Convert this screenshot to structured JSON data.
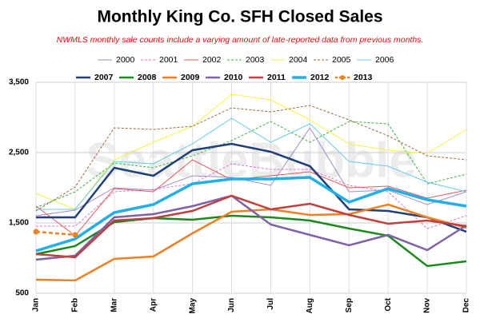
{
  "chart_data": {
    "type": "line",
    "title": "Monthly King Co. SFH Closed Sales",
    "subtitle": "NWMLS monthly sale counts include a varying amount of late-reported  data from previous months.",
    "watermark": "SeattleBubble",
    "categories": [
      "Jan",
      "Feb",
      "Mar",
      "Apr",
      "May",
      "Jun",
      "Jul",
      "Aug",
      "Sep",
      "Oct",
      "Nov",
      "Dec"
    ],
    "ylim": [
      500,
      3500
    ],
    "yticks": [
      {
        "value": 500,
        "label": "500"
      },
      {
        "value": 1500,
        "label": "1,500"
      },
      {
        "value": 2500,
        "label": "2,500"
      },
      {
        "value": 3500,
        "label": "3,500"
      }
    ],
    "grid": true,
    "series": [
      {
        "name": "2000",
        "color": "#a58bc8",
        "dashed": false,
        "values": [
          1602,
          1682,
          2000,
          1966,
          2170,
          2148,
          2034,
          2852,
          1943,
          1966,
          1761,
          1943
        ]
      },
      {
        "name": "2001",
        "color": "#d878c8",
        "dashed": true,
        "values": [
          1455,
          1455,
          1943,
          1977,
          2057,
          2341,
          2261,
          2261,
          2034,
          1943,
          1420,
          1602
        ]
      },
      {
        "name": "2002",
        "color": "#e85858",
        "dashed": false,
        "values": [
          1739,
          1318,
          1989,
          1943,
          2398,
          2114,
          2170,
          2227,
          2000,
          2023,
          1852,
          1966
        ]
      },
      {
        "name": "2003",
        "color": "#40b040",
        "dashed": true,
        "values": [
          1716,
          1943,
          2352,
          2284,
          2455,
          2670,
          2943,
          2648,
          2943,
          2909,
          2057,
          2193
        ]
      },
      {
        "name": "2004",
        "color": "#f4f440",
        "dashed": false,
        "values": [
          1920,
          1693,
          2398,
          2648,
          2875,
          3330,
          3250,
          2966,
          2625,
          2534,
          2489,
          2830
        ]
      },
      {
        "name": "2005",
        "color": "#9a6848",
        "dashed": true,
        "values": [
          1670,
          2011,
          2852,
          2830,
          2875,
          3136,
          3080,
          3170,
          2966,
          2739,
          2455,
          2398
        ]
      },
      {
        "name": "2006",
        "color": "#68cce8",
        "dashed": false,
        "values": [
          1693,
          1693,
          2375,
          2341,
          2625,
          2989,
          2648,
          2909,
          2375,
          2307,
          2080,
          1943
        ]
      },
      {
        "name": "2007",
        "color": "#1f3f7a",
        "dashed": false,
        "values": [
          1580,
          1580,
          2284,
          2170,
          2534,
          2625,
          2511,
          2307,
          1693,
          1670,
          1580,
          1375
        ]
      },
      {
        "name": "2008",
        "color": "#1a8a1a",
        "dashed": false,
        "values": [
          1057,
          1170,
          1511,
          1568,
          1545,
          1602,
          1580,
          1534,
          1420,
          1318,
          886,
          955
        ]
      },
      {
        "name": "2009",
        "color": "#f07f20",
        "dashed": false,
        "values": [
          693,
          682,
          989,
          1023,
          1352,
          1659,
          1693,
          1614,
          1625,
          1761,
          1580,
          1432
        ]
      },
      {
        "name": "2010",
        "color": "#8060a8",
        "dashed": false,
        "values": [
          977,
          1034,
          1580,
          1625,
          1739,
          1886,
          1477,
          1330,
          1182,
          1330,
          1114,
          1466
        ]
      },
      {
        "name": "2011",
        "color": "#c04040",
        "dashed": false,
        "values": [
          1057,
          1011,
          1534,
          1568,
          1670,
          1886,
          1693,
          1773,
          1614,
          1489,
          1534,
          1455
        ]
      },
      {
        "name": "2012",
        "color": "#20b0e8",
        "dashed": false,
        "values": [
          1102,
          1273,
          1648,
          1761,
          2057,
          2125,
          2125,
          2148,
          1795,
          1989,
          1830,
          1739
        ]
      },
      {
        "name": "2013",
        "color": "#f07f20",
        "dashed": true,
        "markers": true,
        "values": [
          1375,
          1330,
          null,
          null,
          null,
          null,
          null,
          null,
          null,
          null,
          null,
          null
        ]
      }
    ]
  }
}
